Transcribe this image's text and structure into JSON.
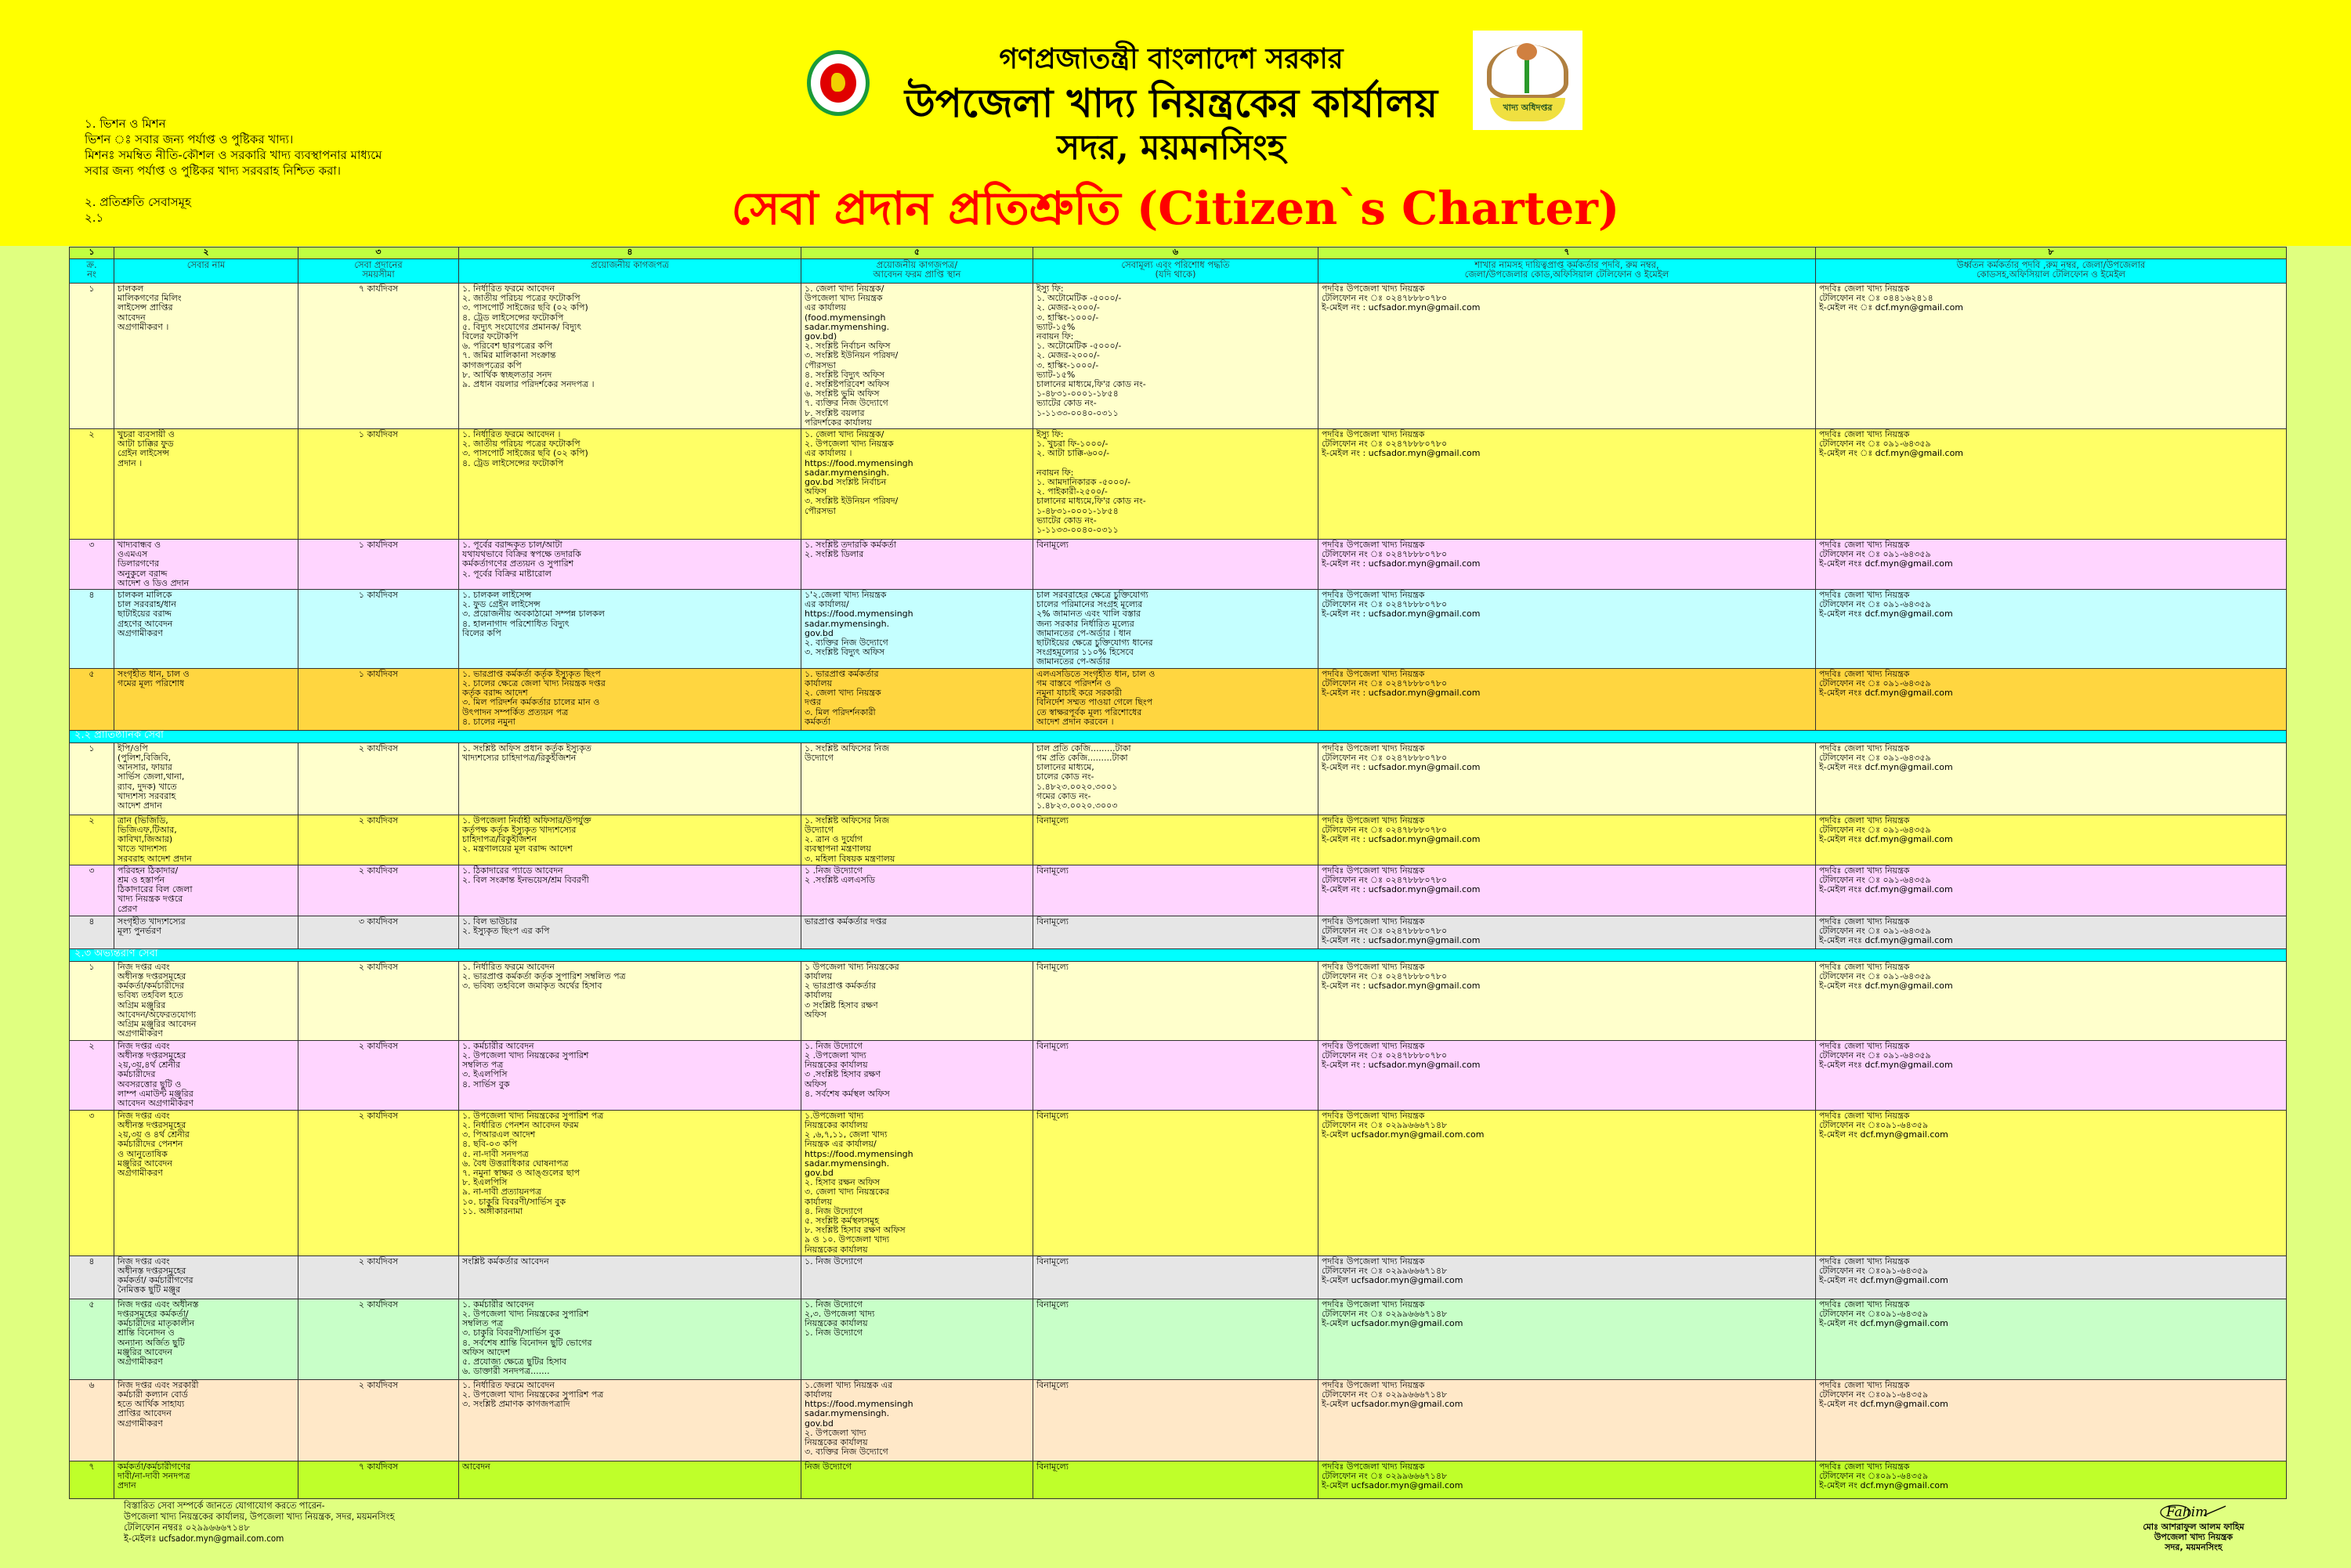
{
  "header": {
    "government": "গণপ্রজাতন্ত্রী বাংলাদেশ সরকার",
    "office": "উপজেলা খাদ্য নিয়ন্ত্রকের কার্যালয়",
    "location": "সদর, ময়মনসিংহ",
    "charter_title": "সেবা প্রদান প্রতিশ্রুতি (Citizen`s Charter)",
    "logo_text": "খাদ্য অধিদপ্তর",
    "title_color": "#FF0000",
    "band_color": "#FFFF00"
  },
  "intro": {
    "line1": "১. ভিশন ও মিশন",
    "line2": "ভিশন ঃ সবার জন্য পর্যাপ্ত ও পুষ্টিকর খাদ্য।",
    "line3": "মিশনঃ সমম্বিত নীতি-কৌশল ও সরকারি খাদ্য ব্যবস্থাপনার মাধ্যমে",
    "line4": "সবার জন্য পর্যাপ্ত ও পুষ্টিকর খাদ্য সরবরাহ নিশ্চিত করা।",
    "line5": "২.  প্রতিশ্রুতি সেবাসমূহ",
    "line6": "২.১"
  },
  "table": {
    "column_numbers": [
      "১",
      "২",
      "৩",
      "৪",
      "৫",
      "৬",
      "৭",
      "৮"
    ],
    "column_headers": [
      "ক্র.\nনং",
      "সেবার নাম",
      "সেবা প্রদানের\nসময়সীমা",
      "প্রয়োজনীয় কাগজপত্র",
      "প্রয়োজনীয় কাগজপত্র/\nআবেদন ফরম প্রাপ্তি স্থান",
      "সেবামূল্য এবং পরিশোধ পদ্ধতি\n(যদি থাকে)",
      "শাখার নামসহ দায়িত্বপ্রাপ্ত কর্মকর্তার পদবি, রুম নম্বর,\nজেলা/উপজেলার কোড,অফিসিয়াল টেলিফোন ও ইমেইল",
      "উর্ধ্বতন কর্মকর্তার পদবি ,রুম নম্বর, জেলা/উপজেলার\nকোডসহ,অফিসিয়াল টেলিফোন ও ইমেইল"
    ],
    "sections": [
      {
        "title": "",
        "rows": [
          {
            "no": "১",
            "name": "চালকল\nমালিকগণের মিলিং\nলাইসেন্স প্রাপ্তির\nআবেদন\nঅগ্রগামীকরণ ।",
            "time": "৭ কার্যদিবস",
            "docs": "১. নির্ধারিত ফরমে আবেদন\n২. জাতীয় পরিচয় পত্রের ফটোকপি\n৩. পাসপোর্ট সাইজের ছবি (০২ কপি)\n৪. ট্রেড লাইসেন্সের ফটোকপি\n৫. বিদ্যুৎ সংযোগের প্রমানক/ বিদ্যুৎ\nবিলের ফটোকপি\n৬. পরিবেশ ছারপত্রের কপি\n৭. জমির মালিকানা সংক্রান্ত\nকাগজপত্রের কপি\n৮. আর্থিক স্বচ্ছলতার সনদ\n৯. প্রধান বয়লার পরিদর্শকের সনদপত্র ।",
            "source": "১. জেলা খাদ্য নিয়ন্ত্রক/\nউপজেলা খাদ্য নিয়ন্ত্রক\nএর কার্যালয়\n(food.mymensingh\nsadar.mymenshing.\ngov.bd)\n২. সংশ্লিষ্ট নির্বাচন  অফিস\n৩. সংশ্লিষ্ট ইউনিয়ন পরিষদ/\nপৌরসভা\n৪. সংশ্লিষ্ট বিদ্যুৎ অফিস\n৫. সংশ্লিষ্টপরিবেশ অফিস\n৬. সংশ্লিষ্ট ভুমি অফিস\n৭. ব্যক্তির নিজ উদ্যোগে\n৮. সংশ্লিষ্ট বয়লার\nপরিদর্শকের কার্যালয়",
            "fee": "ইস্যু ফি:\n১. অটোমেটিক -৫০০০/-\n২. মেজর-২০০০/-\n৩. হাস্কিং-১০০০/-\nভ্যাট-১৫%\nনবায়ন ফি:\n১. অটোমেটিক -৫০০০/-\n২. মেজর-২০০০/-\n৩. হাস্কিং-১০০০/-\nভ্যাট-১৫%\nচালানের মাধ্যমে,ফি'র কোড নং-\n১-৪৮৩১-০০০১-১৮৫৪\nভ্যাটের কোড নং-\n১-১১৩৩-০০৪০-০৩১১",
            "officer": "পদবিঃ উপজেলা খাদ্য নিয়ন্ত্রক\nটেলিফোন নং ঃ ০২৪৭৮৮৮০৭৮০\nই-মেইল নং : ucfsador.myn@gmail.com",
            "superior": "পদবিঃ জেলা খাদ্য নিয়ন্ত্রক\nটেলিফোন নং ঃ ০৪৪১৬২৪১৪\nই-মেইল নং ঃ dcf.myn@gmail.com",
            "bg": "#FFFFCC"
          },
          {
            "no": "২",
            "name": "খুচরা ব্যবসায়ী ও\nআটা চাক্কির ফুড\nগ্রেইন লাইসেন্স\nপ্রদান ।",
            "time": "১ কার্যদিবস",
            "docs": "১. নির্ধারিত ফরমে আবেদন  ।\n২. জাতীয় পরিচয় পত্রের ফটোকপি\n৩. পাসপোর্ট সাইজের ছবি (০২ কপি)\n৪. ট্রেড লাইসেন্সের ফটোকপি",
            "source": "১. জেলা খাদ্য নিয়ন্ত্রক/\n২. উপজেলা খাদ্য নিয়ন্ত্রক\nএর কার্যালয়  ।\nhttps://food.mymensingh\nsadar.mymensingh.\ngov.bd সংশ্লিষ্ট নির্বাচন\nঅফিস\n৩. সংশ্লিষ্ট ইউনিয়ন পরিষদ/\nপৌরসভা",
            "fee": "ইস্যু ফি:\n১. খুচরা ফি-১০০০/-\n২. আটা চাক্কি-৬০০/-\n\nনবায়ন ফি:\n১. আমদানিকারক -৫০০০/-\n২. পাইকারী-২৫০০/-\nচালানের মাধ্যমে,ফি'র কোড নং-\n১-৪৮৩১-০০০১-১৮৫৪\nভ্যাটের কোড নং-\n১-১১৩৩-০০৪০-০৩১১",
            "officer": "পদবিঃ উপজেলা খাদ্য নিয়ন্ত্রক\nটেলিফোন নং ঃ ০২৪৭৮৮৮০৭৮০\nই-মেইল নং : ucfsador.myn@gmail.com",
            "superior": "পদবিঃ জেলা খাদ্য নিয়ন্ত্রক\nটেলিফোন নং ঃ ০৯১-৬৪৩৫৯\nই-মেইল নং ঃ dcf.myn@gmail.com",
            "bg": "#FFFF66"
          },
          {
            "no": "৩",
            "name": "খাদ্যবান্ধব ও\nওএমএস\nডিলারগণের\nঅনুকুলে বরাদ্দ\nআদেশ ও ডিও প্রদান",
            "time": "১ কার্যদিবস",
            "docs": "১. পূর্বের বরাদ্দকৃত চাল/আটা\nযথাযথভাবে বিক্রির স্বপক্ষে তদারকি\nকর্মকর্তাগণের প্রত্যয়ন ও সুপারিশ\n২. পূর্বের বিক্রির মাষ্টারোল",
            "source": "১. সংশ্লিষ্ট তদারকি কর্মকর্তা\n২. সংশ্লিষ্ট ডিলার",
            "fee": "বিনামূল্যে",
            "officer": "পদবিঃ উপজেলা খাদ্য নিয়ন্ত্রক\nটেলিফোন নং ঃ ০২৪৭৮৮৮০৭৮০\nই-মেইল নং : ucfsador.myn@gmail.com",
            "superior": "পদবিঃ জেলা খাদ্য নিয়ন্ত্রক\nটেলিফোন নং ঃ ০৯১-৬৪৩৫৯\nই-মেইল নংঃ dcf.myn@gmail.com",
            "bg": "#FFD5FF"
          },
          {
            "no": "৪",
            "name": "চালকল মালিকে\nচাল সরবরাহ/ধান\nছাটাইয়ের বরাদ্দ\nগ্রহণের আবেদন\nঅগ্রগামীকরণ",
            "time": "১ কার্যদিবস",
            "docs": "১. চালকল লাইসেন্স\n২. ফুড গ্রেইন লাইসেন্স\n৩. প্রয়োজনীয় অবকাঠামো সম্পন্ন চালকল\n৪. হালনাগাদ পরিশোধিত বিদ্যুৎ\nবিলের কপি",
            "source": "১'২.জেলা খাদ্য নিয়ন্ত্রক\nএর কার্যালয়/\nhttps://food.mymensingh\nsadar.mymensingh.\ngov.bd\n২. ব্যক্তির নিজ উদ্যোগে\n৩. সংশ্লিষ্ট বিদ্যুৎ অফিস",
            "fee": "চাল সরবরাহের ক্ষেত্রে চুক্তিযোগ্য\nচালের পরিমানের সংগ্রহ মূল্যের\n২% জামানত এবং খালি বস্তার\nজন্য সরকার নির্ধারিত মূল্যের\nজামানতের পে-অর্ডার ।  ধান\nছাটাইয়ের ক্ষেত্রে চুক্তিযোগ্য ধানের\n সংগ্রহমূল্যের ১১০% হিসেবে\nজামানতের পে-অর্ডার",
            "officer": "পদবিঃ উপজেলা খাদ্য নিয়ন্ত্রক\nটেলিফোন নং ঃ ০২৪৭৮৮৮০৭৮০\nই-মেইল নং : ucfsador.myn@gmail.com",
            "superior": "পদবিঃ জেলা খাদ্য নিয়ন্ত্রক\nটেলিফোন নং ঃ ০৯১-৬৪৩৫৯\nই-মেইল নংঃ dcf.myn@gmail.com",
            "bg": "#C5FFFF"
          },
          {
            "no": "৫",
            "name": "সংগৃহীত ধান, চাল ও\nগমের মূল্য পরিশোধ",
            "time": "১ কার্যদিবস",
            "docs": "১. ভারপ্রাপ্ত কর্মকর্তা কর্তৃক ইস্যুকৃত ছিংপ\n২. চালের ক্ষেত্রে জেলা খাদ্য নিয়ন্ত্রক দপ্তর\nকর্তৃক বরাদ্দ আদেশ\n৩. মিল পরিদর্শন কর্মকর্তার চালের মান ও\nউৎপাদন সম্পর্কিত প্রত্যয়ন পত্র\n৪. চালের নমুনা",
            "source": "১. ভারপ্রাপ্ত কর্মকর্তার\nকার্যালয়\n২. জেলা খাদ্য নিয়ন্ত্রক\nদপ্তর\n৩. মিল পরিদর্শনকারী\nকর্মকর্তা",
            "fee": "এলএসডিতে সংগৃহীত ধান, চাল ও\nগম বাস্তবে পরিদর্শন ও\nনমুনা যাচাই করে সরকারী\nবিনির্দেশ সম্মত পাওয়া গেলে ছিংপ\n তে স্বাক্ষরপূর্বক মূল্য পরিশোধের\nআদেশ প্রদান করবেন ।",
            "officer": "পদবিঃ উপজেলা খাদ্য নিয়ন্ত্রক\nটেলিফোন নং ঃ ০২৪৭৮৮৮০৭৮০\nই-মেইল নং : ucfsador.myn@gmail.com",
            "superior": "পদবিঃ জেলা খাদ্য নিয়ন্ত্রক\nটেলিফোন নং ঃ ০৯১-৬৪৩৫৯\nই-মেইল নংঃ dcf.myn@gmail.com",
            "bg": "#FFD640"
          }
        ]
      },
      {
        "title": "২.২ প্রাতিষ্ঠানিক সেবা",
        "rows": [
          {
            "no": "১",
            "name": "ইপি/ওপি\n(পুলিশ,বিজিবি,\nআনসার, ফায়ার\nসার্ভিস জেলা,থানা,\nর‍্যাব, দুদক) খাতে\nখাদ্যশস্য সরবরাহ\nআদেশ প্রদান",
            "time": "২ কার্যদিবস",
            "docs": "১. সংশ্লিষ্ট অফিস প্রধান কর্তৃক ইস্যুকৃত\nখাদ্যশস্যের চাহিদাপত্র/রিকুইজিশন",
            "source": "১. সংশ্লিষ্ট অফিসের নিজ\nউদ্যোগে",
            "fee": "চাল প্রতি কেজি.........টাকা\nগম প্রতি কেজি.........টাকা\nচালানের মাধ্যমে,\nচালের কোড নং-\n১.৪৮২৩.০০২০.৩০০১\nগমের কোড নং-\n১.৪৮২৩.০০২০.৩০০৩",
            "officer": "পদবিঃ উপজেলা খাদ্য নিয়ন্ত্রক\nটেলিফোন নং ঃ ০২৪৭৮৮৮০৭৮০\nই-মেইল নং : ucfsador.myn@gmail.com",
            "superior": "পদবিঃ জেলা খাদ্য নিয়ন্ত্রক\nটেলিফোন নং ঃ ০৯১-৬৪৩৫৯\nই-মেইল নংঃ dcf.myn@gmail.com",
            "bg": "#FFFFCC"
          },
          {
            "no": "২",
            "name": "ত্রান (ভিজিডি,\nভিজিএফ,টিআর,\nকাবিখা,জিআর)\nখাতে খাদ্যশস্য\nসরবরাহ আদেশ প্রদান",
            "time": "২ কার্যদিবস",
            "docs": "১. উপজেলা নির্বাহী অফিসার/উপর্যুক্ত\nকর্তৃপক্ষ কর্তৃক ইস্যুকৃত খাদ্যশস্যের\nচাহিদাপত্র/রিকুইজিশন\n২. মন্ত্রণালয়ের মূল বরাদ্দ আদেশ",
            "source": "১. সংশ্লিষ্ট অফিসের নিজ\nউদ্যোগে\n২. ত্রান ও দুর্যোগ\nব্যবস্থাপনা মন্ত্রণালয়\n৩. মহিলা বিষয়ক মন্ত্রণালয়",
            "fee": "বিনামূল্যে",
            "officer": "পদবিঃ উপজেলা খাদ্য নিয়ন্ত্রক\nটেলিফোন নং ঃ ০২৪৭৮৮৮০৭৮০\nই-মেইল নং : ucfsador.myn@gmail.com",
            "superior": "পদবিঃ জেলা খাদ্য নিয়ন্ত্রক\nটেলিফোন নং ঃ ০৯১-৬৪৩৫৯\nই-মেইল নংঃ dcf.myn@gmail.com",
            "bg": "#FFFF66"
          },
          {
            "no": "৩",
            "name": "পরিবহন ঠিকাদার/\nশ্রম ও হস্তার্পন\nঠিকাদারের বিল জেলা\nখাদ্য নিয়ন্ত্রক দপ্তরে\nপ্রেরণ",
            "time": "২ কার্যদিবস",
            "docs": "১. ঠিকাদারের প্যাডে আবেদন\n২. বিল সংক্রান্ত ইনভয়েস/শ্রম বিবরণী",
            "source": "১ .নিজ উদ্যোগে\n২ .সংশ্লিষ্ট এলএসডি",
            "fee": "বিনামূল্যে",
            "officer": "পদবিঃ উপজেলা খাদ্য নিয়ন্ত্রক\nটেলিফোন নং ঃ ০২৪৭৮৮৮০৭৮০\nই-মেইল নং : ucfsador.myn@gmail.com",
            "superior": "পদবিঃ জেলা খাদ্য নিয়ন্ত্রক\nটেলিফোন নং ঃ ০৯১-৬৪৩৫৯\nই-মেইল নংঃ dcf.myn@gmail.com",
            "bg": "#FFD5FF"
          },
          {
            "no": "৪",
            "name": "সংগৃহীত খাদ্যশস্যের\nমূল্য পুনর্ভরণ",
            "time": "৩ কার্যদিবস",
            "docs": "১. বিল ভাউচার\n২. ইস্যুকৃত ছিংপ এর কপি",
            "source": "ভারপ্রাপ্ত কর্মকর্তার দপ্তর",
            "fee": "বিনামূল্যে",
            "officer": "পদবিঃ উপজেলা খাদ্য নিয়ন্ত্রক\nটেলিফোন নং ঃ ০২৪৭৮৮৮০৭৮০\nই-মেইল নং : ucfsador.myn@gmail.com",
            "superior": "পদবিঃ জেলা খাদ্য নিয়ন্ত্রক\nটেলিফোন নং ঃ ০৯১-৬৪৩৫৯\nই-মেইল নংঃ dcf.myn@gmail.com",
            "bg": "#E6E6E6"
          }
        ]
      },
      {
        "title": "২.৩ অভ্যন্তরীণ সেবা",
        "rows": [
          {
            "no": "১",
            "name": "নিজ দপ্তর এবং\nঅধীনস্ত দপ্তরসমূহের\nকর্মকর্তা/কর্মচারীদের\nভবিষ্য তহবিল হতে\nঅগ্রিম মঞ্জুরির\nআবেদন/অফেরতযোগ্য\nঅগ্রিম মঞ্জুরির আবেদন\nঅগ্রগামীকরণ",
            "time": "২ কার্যদিবস",
            "docs": "১. নির্ধারিত ফরমে আবেদন\n২. ভারপ্রাপ্ত কর্মকর্তা কর্তৃক সুপারিশ সম্বলিত পত্র\n৩. ভবিষ্য তহবিলে জমাকৃত অর্থের হিসাব",
            "source": "১ উপজেলা খাদ্য নিয়ন্ত্রকের\nকার্যালয়\n২ ভারপ্রাপ্ত কর্মকর্তার\nকার্যালয়\n৩ সংশ্লিষ্ট হিসাব রক্ষণ\nঅফিস",
            "fee": "বিনামূল্যে",
            "officer": "পদবিঃ উপজেলা খাদ্য নিয়ন্ত্রক\nটেলিফোন নং ঃ ০২৪৭৮৮৮০৭৮০\nই-মেইল নং : ucfsador.myn@gmail.com",
            "superior": "পদবিঃ জেলা খাদ্য নিয়ন্ত্রক\nটেলিফোন নং ঃ ০৯১-৬৪৩৫৯\nই-মেইল নংঃ dcf.myn@gmail.com",
            "bg": "#FFFFCC"
          },
          {
            "no": "২",
            "name": "নিজ দপ্তর এবং\nঅধীনস্ত দপ্তরসমূহের\n২য়,৩য়,৪র্থ শ্রেনীর\nকর্মচারীদের\nঅবসরত্তোর ছুটি ও\nলাম্প এমাউন্ট মঞ্জুরির\nআবেদন অগ্রগামীকরণ",
            "time": "২ কার্যদিবস",
            "docs": "১. কর্মচারীর আবেদন\n২. উপজেলা খাদ্য নিয়ন্ত্রকের সুপারিশ\nসম্বলিত পত্র\n৩. ইএলপিসি\n৪. সার্ভিস বুক",
            "source": "১. নিজ উদ্যোগে\n২ .উপজেলা খাদ্য\nনিয়ন্ত্রকের কার্যালয়\n৩ .সংশ্লিষ্ট হিসাব রক্ষণ\nঅফিস\n৪. সর্বশেষ কর্মস্থল অফিস",
            "fee": "বিনামূল্যে",
            "officer": "পদবিঃ উপজেলা খাদ্য নিয়ন্ত্রক\nটেলিফোন নং ঃ ০২৪৭৮৮৮০৭৮০\nই-মেইল নং : ucfsador.myn@gmail.com",
            "superior": "পদবিঃ জেলা খাদ্য নিয়ন্ত্রক\nটেলিফোন নং ঃ ০৯১-৬৪৩৫৯\nই-মেইল নংঃ dcf.myn@gmail.com",
            "bg": "#FFD5FF"
          },
          {
            "no": "৩",
            "name": "নিজ দপ্তর এবং\nঅধীনস্ত দপ্তরসমূহের\n২য়,৩য় ও ৪র্থ শ্রেনীর\nকর্মচারীদের পেনশন\nও আনুতোষিক\nমঞ্জুরির আবেদন\nঅগ্রগামীকরণ",
            "time": "২ কার্যদিবস",
            "docs": "১. উপজেলা খাদ্য নিয়ন্ত্রকের সুপারিশ পত্র\n২. নির্ধারিত পেনশন আবেদন ফরম\n৩. পিআরএল আদেশ\n৪. ছবি-০৩ কপি\n৫. না-দাবী সনদপত্র\n৬. বৈধ উত্তরাধিকার ঘোষনাপত্র\n৭. নমুনা স্বাক্ষর ও আঙ্গুলের ছাপ\n৮. ইএলপিসি\n৯. না-দাবী প্রত্যায়নপত্র\n১০. চাকুরি বিবরণী/সার্ভিস বুক\n১১. অঙ্গীকারনামা",
            "source": "১.উপজেলা খাদ্য\nনিয়ন্ত্রকের কার্যালয়\n২ ,৬,৭,১১, জেলা খাদ্য\nনিয়ন্ত্রক এর কার্যালয়/\nhttps://food.mymensingh\nsadar.mymensingh.\ngov.bd\n২. হিসাব রক্ষন অফিস\n৩. জেলা খাদ্য নিয়ন্ত্রকের\nকার্যালয়\n৪. নিজ উদ্যোগে\n৫. সংশ্লিষ্ট কর্মস্থলসমূহ\n৮. সংশ্লিষ্ট হিসাব রক্ষণ অফিস\n৯ ও ১০. উপজেলা খাদ্য\nনিয়ন্ত্রকের কার্যালয়",
            "fee": "বিনামূল্যে",
            "officer": "পদবিঃ উপজেলা খাদ্য নিয়ন্ত্রক\nটেলিফোন নং ঃ ০২৯৯৬৬৬৭১৪৮\nই-মেইল ucfsador.myn@gmail.com.com",
            "superior": "পদবিঃ জেলা খাদ্য নিয়ন্ত্রক\nটেলিফোন নং ঃ০৯১-৬৪৩৫৯\nই-মেইল নং dcf.myn@gmail.com",
            "bg": "#FFFF66"
          },
          {
            "no": "৪",
            "name": "নিজ দপ্তর এবং\nঅধীনস্ত দপ্তরসমূহের\nকর্মকর্তা/ কর্মচারীগণের\nনৈমিত্তক ছুটি মঞ্জুর",
            "time": "২ কার্যদিবস",
            "docs": "সংশ্লিষ্ট কর্মকর্তার আবেদন",
            "source": "১. নিজ উদ্যোগে",
            "fee": "বিনামূল্যে",
            "officer": "পদবিঃ উপজেলা খাদ্য নিয়ন্ত্রক\nটেলিফোন নং ঃ ০২৯৯৬৬৬৭১৪৮\nই-মেইল ucfsador.myn@gmail.com",
            "superior": "পদবিঃ জেলা খাদ্য নিয়ন্ত্রক\nটেলিফোন নং ঃ০৯১-৬৪৩৫৯\nই-মেইল নং dcf.myn@gmail.com",
            "bg": "#E6E6E6"
          },
          {
            "no": "৫",
            "name": "নিজ দপ্তর এবং অধীনস্ত\nদপ্তরসমূহের কর্মকর্তা/\nকর্মচারীদের মাতৃকালীন\nশ্রান্তি বিনোদন ও\nঅন্যান্য অর্জিত ছুটি\nমঞ্জুরির আবেদন\nঅগ্রগামীকরণ",
            "time": "২ কার্যদিবস",
            "docs": "১. কর্মচারীর আবেদন\n২.  উপজেলা খাদ্য নিয়ন্ত্রকের সুপারিশ\nসম্বলিত পত্র\n৩.  চাকুরি বিবরণী/সার্ভিস বুক\n৪. সর্বশেষ শ্রান্তি বিনোদন ছুটি ভোগের\nঅফিস আদেশ\n৫. প্রযোজ্য ক্ষেত্রে ছুটির হিসাব\n৬. ডাক্তারী সনদপত্র.......",
            "source": "১. নিজ উদ্যোগে\n২,৩. উপজেলা খাদ্য\nনিয়ন্ত্রকের কার্যালয়\n১. নিজ উদ্যোগে",
            "fee": "বিনামূল্যে",
            "officer": "পদবিঃ উপজেলা খাদ্য নিয়ন্ত্রক\nটেলিফোন নং ঃ ০২৯৯৬৬৬৭১৪৮\nই-মেইল ucfsador.myn@gmail.com",
            "superior": "পদবিঃ জেলা খাদ্য নিয়ন্ত্রক\nটেলিফোন নং ঃ০৯১-৬৪৩৫৯\nই-মেইল নং dcf.myn@gmail.com",
            "bg": "#C8FFC8"
          },
          {
            "no": "৬",
            "name": "নিজ দপ্তর এবং সরকারী\nকর্মচারী কল্যান বোর্ড\nহতে আর্থিক সাহায্য\nপ্রাপ্তির আবেদন\nঅগ্রগামীকরণ",
            "time": "২ কার্যদিবস",
            "docs": "১. নির্ধারিত ফরমে আবেদন\n২. উপজেলা খাদ্য নিয়ন্ত্রকের সুপারিশ পত্র\n৩. সংশ্লিষ্ট প্রমাণক কাগজপত্রাদি",
            "source": "১.জেলা খাদ্য নিয়ন্ত্রক এর\nকার্যালয়\nhttps://food.mymensingh\nsadar.mymensingh.\ngov.bd\n২. উপজেলা খাদ্য\nনিয়ন্ত্রকের কার্যালয়\n৩. ব্যক্তির নিজ উদ্যোগে",
            "fee": "বিনামূল্যে",
            "officer": "পদবিঃ উপজেলা খাদ্য নিয়ন্ত্রক\nটেলিফোন নং ঃ ০২৯৯৬৬৬৭১৪৮\nই-মেইল ucfsador.myn@gmail.com",
            "superior": "পদবিঃ জেলা খাদ্য নিয়ন্ত্রক\nটেলিফোন নং ঃ০৯১-৬৪৩৫৯\nই-মেইল নং dcf.myn@gmail.com",
            "bg": "#FFE8C8"
          },
          {
            "no": "৭",
            "name": "কর্মকর্তা/কর্মচারীগণের\nদাবী/না-দাবী সনদপত্র\nপ্রদান",
            "time": "৭ কার্যদিবস",
            "docs": "আবেদন",
            "source": "নিজ উদ্যোগে",
            "fee": "বিনামূল্যে",
            "officer": "পদবিঃ উপজেলা খাদ্য নিয়ন্ত্রক\nটেলিফোন নং ঃ ০২৯৯৬৬৬৭১৪৮\nই-মেইল ucfsador.myn@gmail.com",
            "superior": "পদবিঃ জেলা খাদ্য নিয়ন্ত্রক\nটেলিফোন নং ঃ০৯১-৬৪৩৫৯\nই-মেইল নং dcf.myn@gmail.com",
            "bg": "#BFFF2A"
          }
        ]
      }
    ]
  },
  "footer": {
    "line1": "বিস্তারিত সেবা সম্পর্কে জানতে যোগাযোগ করতে পারেন-",
    "line2": "উপজেলা খাদ্য নিয়ন্ত্রকের কার্যালয়, উপজেলা খাদ্য নিয়ন্ত্রক, সদর, ময়মনসিংহ",
    "line3": "টেলিফোন নম্বরঃ ০২৯৯৬৬৬৭১৪৮",
    "line4": "ই-মেইলঃ ucfsador.myn@gmail.com.com"
  },
  "signature": {
    "scribble": "Fahim",
    "name": "মোঃ আশরাফুল আলম ফাহিম",
    "designation": "উপজেলা খাদ্য নিয়ন্ত্রক",
    "place": "সদর, ময়মনসিংহ"
  }
}
